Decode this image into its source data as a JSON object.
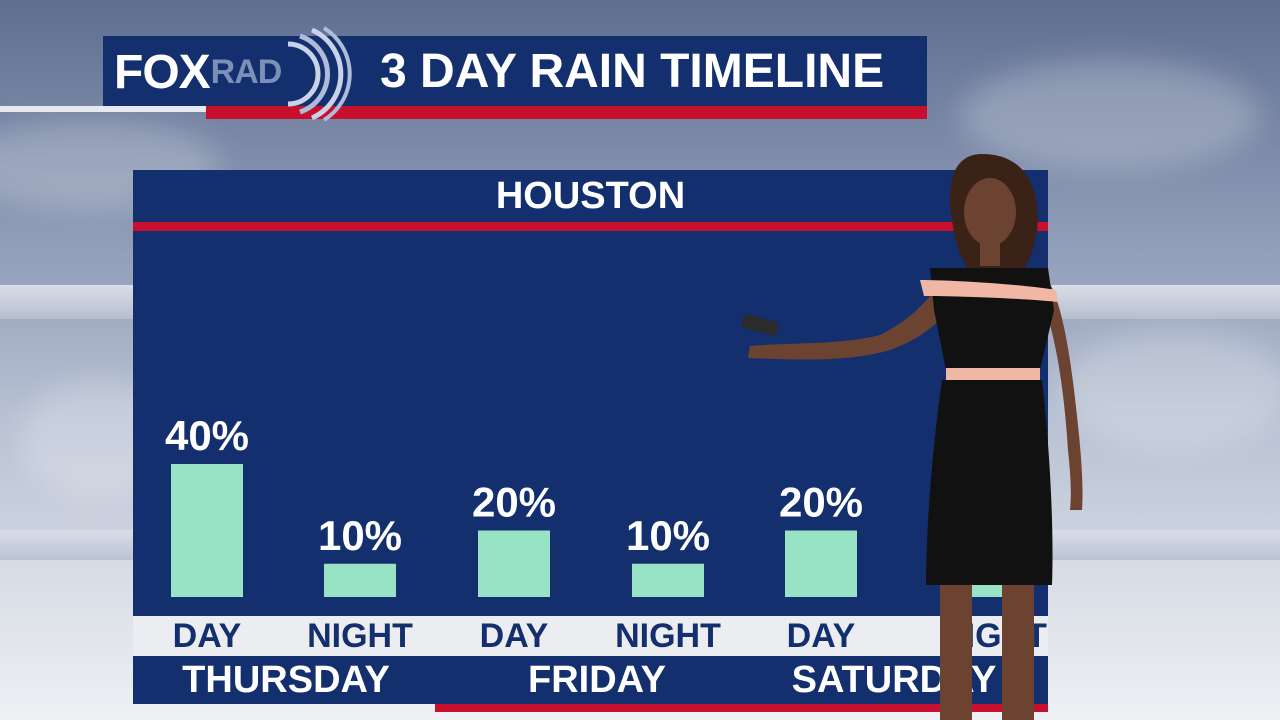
{
  "brand": {
    "logo_primary": "FOX",
    "logo_secondary": "RAD"
  },
  "title": "3 DAY RAIN TIMELINE",
  "location": "HOUSTON",
  "colors": {
    "navy": "#142f6e",
    "red": "#c8102e",
    "bar": "#98e2c6",
    "label_strip": "#ecedf1"
  },
  "chart_data": {
    "type": "bar",
    "title": "HOUSTON",
    "categories": [
      "THURSDAY DAY",
      "THURSDAY NIGHT",
      "FRIDAY DAY",
      "FRIDAY NIGHT",
      "SATURDAY DAY",
      "SATURDAY NIGHT"
    ],
    "periods": [
      "DAY",
      "NIGHT",
      "DAY",
      "NIGHT",
      "DAY",
      "NIGHT"
    ],
    "value_labels": [
      "40%",
      "10%",
      "20%",
      "10%",
      "20%",
      ""
    ],
    "values": [
      40,
      10,
      20,
      10,
      20,
      10
    ],
    "days": [
      "THURSDAY",
      "FRIDAY",
      "SATURDAY"
    ],
    "unit": "%",
    "ylim": [
      0,
      100
    ],
    "grid": false,
    "legend": "none"
  }
}
